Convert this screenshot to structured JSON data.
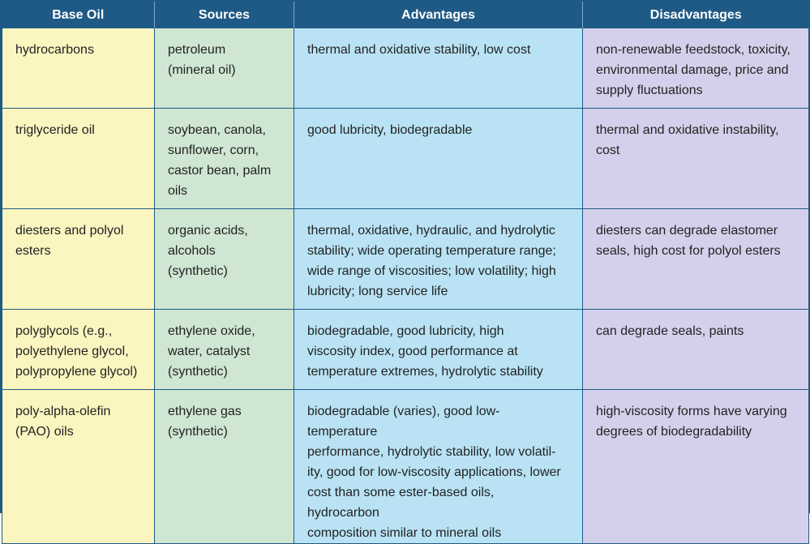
{
  "headers": [
    "Base Oil",
    "Sources",
    "Advantages",
    "Disadvantages"
  ],
  "rows": [
    {
      "base_oil": "hydrocarbons",
      "sources": "petroleum\n(mineral oil)",
      "advantages": "thermal and oxidative stability, low cost",
      "disadvantages": "non-renewable feedstock, toxicity,\nenvironmental damage, price and\nsupply fluctuations"
    },
    {
      "base_oil": "triglyceride oil",
      "sources": "soybean, canola,\nsunflower, corn,\ncastor bean, palm\noils",
      "advantages": "good lubricity, biodegradable",
      "disadvantages": "thermal and oxidative instability,\ncost"
    },
    {
      "base_oil": "diesters and polyol\nesters",
      "sources": "organic acids,\nalcohols\n(synthetic)",
      "advantages": "thermal, oxidative, hydraulic, and hydrolytic\nstability; wide operating temperature range;\nwide range of viscosities; low volatility; high\nlubricity; long service life",
      "disadvantages": "diesters can degrade elastomer\nseals, high cost for polyol esters"
    },
    {
      "base_oil": "polyglycols (e.g.,\npolyethylene glycol,\npolypropylene glycol)",
      "sources": "ethylene oxide,\nwater, catalyst\n(synthetic)",
      "advantages": "biodegradable, good lubricity, high\nviscosity index, good performance at\ntemperature extremes, hydrolytic stability",
      "disadvantages": "can degrade seals, paints"
    },
    {
      "base_oil": "poly-alpha-olefin\n(PAO) oils",
      "sources": "ethylene gas\n(synthetic)",
      "advantages": "biodegradable (varies), good low-temperature\nperformance, hydrolytic stability, low volatil-\nity, good for low-viscosity applications, lower\ncost than some ester-based oils, hydrocarbon\ncomposition similar to mineral oils",
      "disadvantages": "high-viscosity forms have varying\ndegrees of biodegradability"
    }
  ],
  "colors": {
    "header": "#1f5a86",
    "base_oil_col": "#fbf5c0",
    "sources_col": "#cfe6d3",
    "advantages_col": "#b9e3f4",
    "disadvantages_col": "#d4d0eb"
  }
}
